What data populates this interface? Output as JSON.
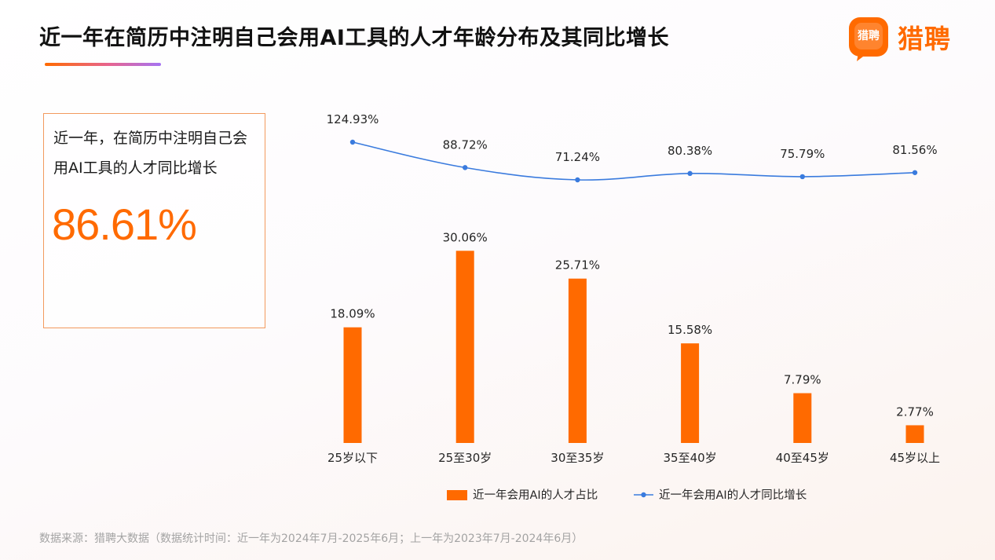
{
  "title": "近一年在简历中注明自己会用AI工具的人才年龄分布及其同比增长",
  "logo": {
    "badge_text": "猎聘",
    "text": "猎聘"
  },
  "stat": {
    "label": "近一年，在简历中注明自己会用AI工具的人才同比增长",
    "value": "86.61%"
  },
  "source": "数据来源：猎聘大数据（数据统计时间：近一年为2024年7月-2025年6月；上一年为2023年7月-2024年6月）",
  "colors": {
    "bar": "#ff6a00",
    "line": "#3a7bde",
    "accent": "#ff6a00"
  },
  "chart_data": {
    "type": "bar",
    "categories": [
      "25岁以下",
      "25至30岁",
      "30至35岁",
      "35至40岁",
      "40至45岁",
      "45岁以上"
    ],
    "series": [
      {
        "name": "近一年会用AI的人才占比",
        "type": "bar",
        "values": [
          18.09,
          30.06,
          25.71,
          15.58,
          7.79,
          2.77
        ],
        "labels": [
          "18.09%",
          "30.06%",
          "25.71%",
          "15.58%",
          "7.79%",
          "2.77%"
        ]
      },
      {
        "name": "近一年会用AI的人才同比增长",
        "type": "line",
        "values": [
          124.93,
          88.72,
          71.24,
          80.38,
          75.79,
          81.56
        ],
        "labels": [
          "124.93%",
          "88.72%",
          "71.24%",
          "80.38%",
          "75.79%",
          "81.56%"
        ]
      }
    ],
    "legend_position": "bottom",
    "grid": false
  }
}
